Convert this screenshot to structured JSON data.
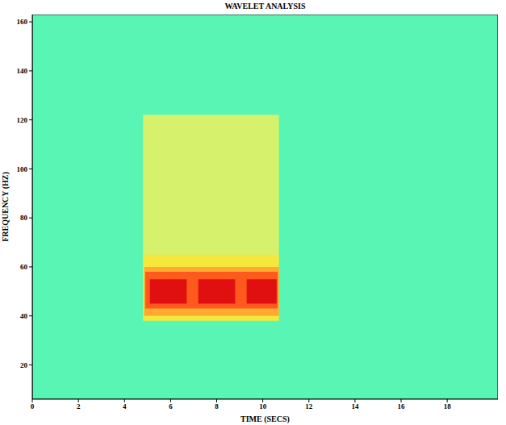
{
  "chart_data": {
    "type": "heatmap",
    "title": "WAVELET ANALYSIS",
    "x_label": "TIME (SECS)",
    "y_label": "FREQUENCY (HZ)",
    "xlim": [
      0,
      20.2
    ],
    "xticks": [
      0,
      2,
      4,
      6,
      8,
      10,
      12,
      14,
      16,
      18
    ],
    "ylim": [
      6,
      163
    ],
    "yticks": [
      20,
      40,
      60,
      80,
      100,
      120,
      140,
      160
    ],
    "colors": [
      "#58f5b4",
      "#d6f26c",
      "#f5e83c",
      "#ffab30",
      "#ff5a1e",
      "#e01010"
    ],
    "cells": [
      {
        "x": [
          0,
          20.2
        ],
        "y": [
          6,
          163
        ],
        "level": 0
      },
      {
        "x": [
          4.8,
          10.7
        ],
        "y": [
          62,
          122
        ],
        "level": 1
      },
      {
        "x": [
          4.8,
          10.7
        ],
        "y": [
          38,
          65
        ],
        "level": 2
      },
      {
        "x": [
          4.85,
          10.7
        ],
        "y": [
          40,
          60
        ],
        "level": 3
      },
      {
        "x": [
          4.9,
          10.65
        ],
        "y": [
          43,
          58
        ],
        "level": 4
      },
      {
        "x": [
          5.1,
          6.7
        ],
        "y": [
          45,
          55
        ],
        "level": 5
      },
      {
        "x": [
          7.2,
          8.8
        ],
        "y": [
          45,
          55
        ],
        "level": 5
      },
      {
        "x": [
          9.3,
          10.6
        ],
        "y": [
          45,
          55
        ],
        "level": 5
      }
    ]
  }
}
